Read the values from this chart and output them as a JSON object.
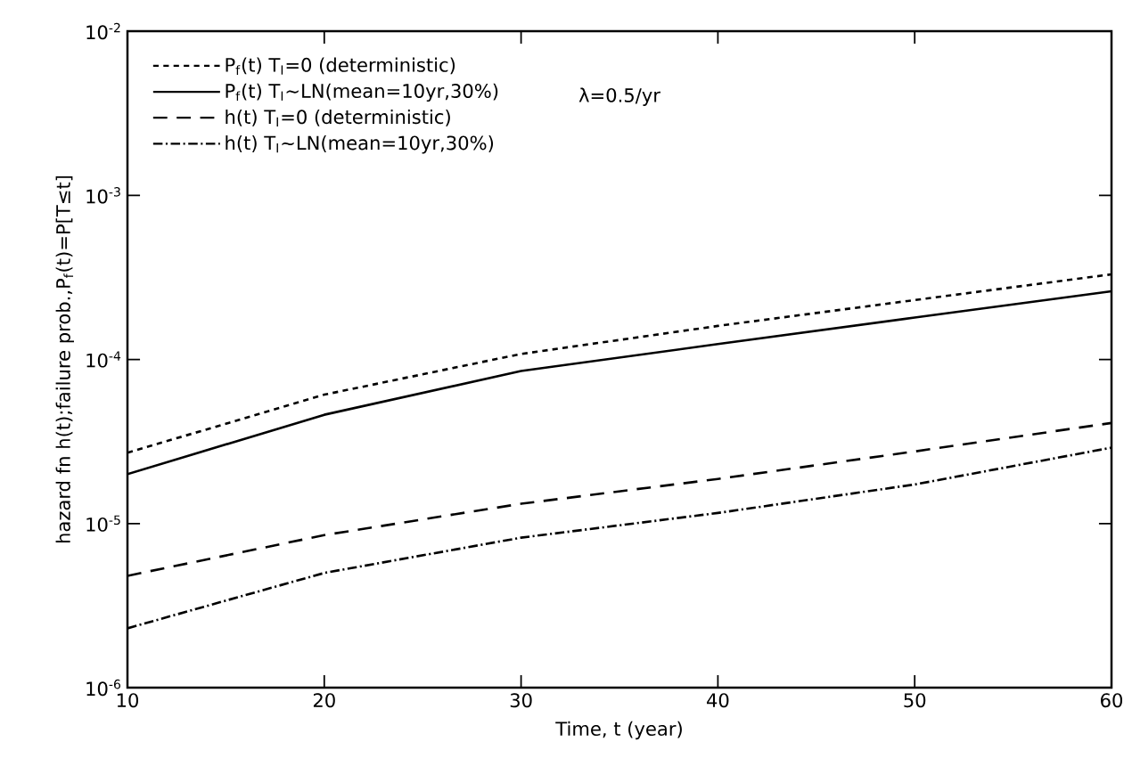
{
  "chart_data": {
    "type": "line",
    "xlabel": "Time, t (year)",
    "ylabel": "hazard fn h(t);failure prob.,P$_{f}$(t)=P[T≤t]",
    "annotations": [
      "λ=0.5/yr"
    ],
    "x": [
      10,
      20,
      30,
      40,
      50,
      60
    ],
    "series": [
      {
        "name": "P$_{f}$(t) T$_{I}$=0 (deterministic)",
        "color": "#000000",
        "line_style": "dotted",
        "values": [
          2.7e-05,
          6.1e-05,
          0.000108,
          0.00016,
          0.00023,
          0.00033
        ]
      },
      {
        "name": "P$_{f}$(t) T$_{I}$~LN(mean=10yr,30%)",
        "color": "#000000",
        "line_style": "solid",
        "values": [
          2e-05,
          4.6e-05,
          8.5e-05,
          0.000124,
          0.00018,
          0.00026
        ]
      },
      {
        "name": "h(t) T$_{I}$=0 (deterministic)",
        "color": "#000000",
        "line_style": "dashed",
        "values": [
          4.8e-06,
          8.5e-06,
          1.32e-05,
          1.87e-05,
          2.75e-05,
          4.1e-05
        ]
      },
      {
        "name": "h(t) T$_{I}$~LN(mean=10yr,30%)",
        "color": "#000000",
        "line_style": "dashdot",
        "values": [
          2.3e-06,
          5e-06,
          8.2e-06,
          1.16e-05,
          1.73e-05,
          2.9e-05
        ]
      }
    ],
    "log": "y",
    "marker": "none",
    "grid": false,
    "legend": "top left",
    "xlim": [
      10,
      60
    ],
    "xticks": [
      10,
      20,
      30,
      40,
      50,
      60
    ],
    "ylim": [
      1e-06,
      0.01
    ],
    "yticks": [
      {
        "value": 1e-06,
        "label": "10$^{-6}$"
      },
      {
        "value": 1e-05,
        "label": "10$^{-5}$"
      },
      {
        "value": 0.0001,
        "label": "10$^{-4}$"
      },
      {
        "value": 0.001,
        "label": "10$^{-3}$"
      },
      {
        "value": 0.01,
        "label": "10$^{-2}$"
      }
    ]
  }
}
